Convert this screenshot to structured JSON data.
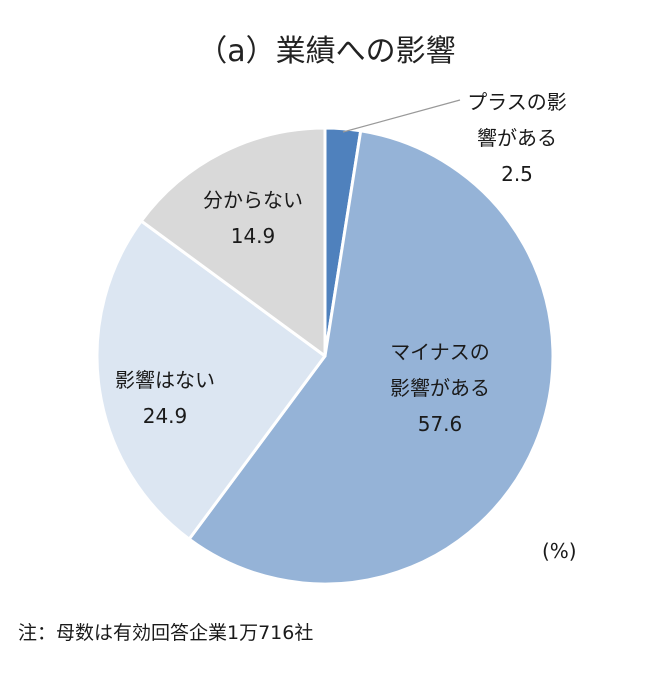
{
  "chart_data": {
    "type": "pie",
    "title": "（a）業績への影響",
    "unit": "(%)",
    "start": "12 o'clock, clockwise",
    "slices": [
      {
        "label_lines": [
          "プラスの影",
          "響がある"
        ],
        "label": "プラスの影響がある",
        "value": 2.5,
        "color": "#4f81bd"
      },
      {
        "label_lines": [
          "マイナスの",
          "影響がある"
        ],
        "label": "マイナスの影響がある",
        "value": 57.6,
        "color": "#95b3d7"
      },
      {
        "label_lines": [
          "影響はない"
        ],
        "label": "影響はない",
        "value": 24.9,
        "color": "#dce6f2"
      },
      {
        "label_lines": [
          "分からない"
        ],
        "label": "分からない",
        "value": 14.9,
        "color": "#d9d9d9"
      }
    ],
    "value_strings": [
      "2.5",
      "57.6",
      "24.9",
      "14.9"
    ]
  },
  "footnote": "注：母数は有効回答企業1万716社"
}
